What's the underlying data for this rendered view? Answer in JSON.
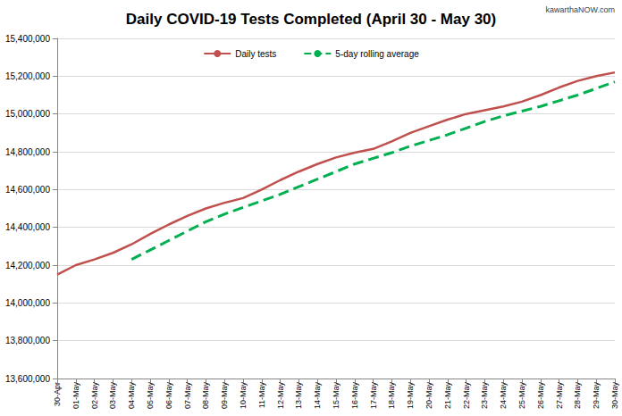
{
  "chart_data": {
    "type": "line",
    "title": "Daily COVID-19 Tests Completed (April 30 - May 30)",
    "annotations": [
      "kawarthaNOW.com"
    ],
    "categories": [
      "30-Apr",
      "01-May",
      "02-May",
      "03-May",
      "04-May",
      "05-May",
      "06-May",
      "07-May",
      "08-May",
      "09-May",
      "10-May",
      "11-May",
      "12-May",
      "13-May",
      "14-May",
      "15-May",
      "16-May",
      "17-May",
      "18-May",
      "19-May",
      "20-May",
      "21-May",
      "22-May",
      "23-May",
      "24-May",
      "25-May",
      "26-May",
      "27-May",
      "28-May",
      "29-May",
      "30-May"
    ],
    "series": [
      {
        "name": "Daily tests",
        "color": "#c0504d",
        "line_style": "solid",
        "values": [
          14150000,
          14200000,
          14230000,
          14265000,
          14310000,
          14365000,
          14415000,
          14460000,
          14500000,
          14530000,
          14555000,
          14600000,
          14650000,
          14695000,
          14735000,
          14770000,
          14795000,
          14815000,
          14855000,
          14900000,
          14935000,
          14970000,
          15000000,
          15020000,
          15040000,
          15065000,
          15100000,
          15140000,
          15175000,
          15200000,
          15220000
        ]
      },
      {
        "name": "5-day rolling average",
        "color": "#00b050",
        "line_style": "dashed",
        "values": [
          null,
          null,
          null,
          null,
          14230000,
          14280000,
          14330000,
          14380000,
          14430000,
          14470000,
          14505000,
          14540000,
          14575000,
          14615000,
          14655000,
          14695000,
          14735000,
          14765000,
          14795000,
          14830000,
          14860000,
          14890000,
          14925000,
          14960000,
          14990000,
          15015000,
          15040000,
          15070000,
          15100000,
          15135000,
          15170000
        ]
      }
    ],
    "ylim": [
      13600000,
      15400000
    ],
    "yticks": [
      {
        "value": 13600000,
        "label": "13,600,000"
      },
      {
        "value": 13800000,
        "label": "13,800,000"
      },
      {
        "value": 14000000,
        "label": "14,000,000"
      },
      {
        "value": 14200000,
        "label": "14,200,000"
      },
      {
        "value": 14400000,
        "label": "14,400,000"
      },
      {
        "value": 14600000,
        "label": "14,600,000"
      },
      {
        "value": 14800000,
        "label": "14,800,000"
      },
      {
        "value": 15000000,
        "label": "15,000,000"
      },
      {
        "value": 15200000,
        "label": "15,200,000"
      },
      {
        "value": 15400000,
        "label": "15,400,000"
      }
    ],
    "grid": true,
    "legend": "top"
  }
}
